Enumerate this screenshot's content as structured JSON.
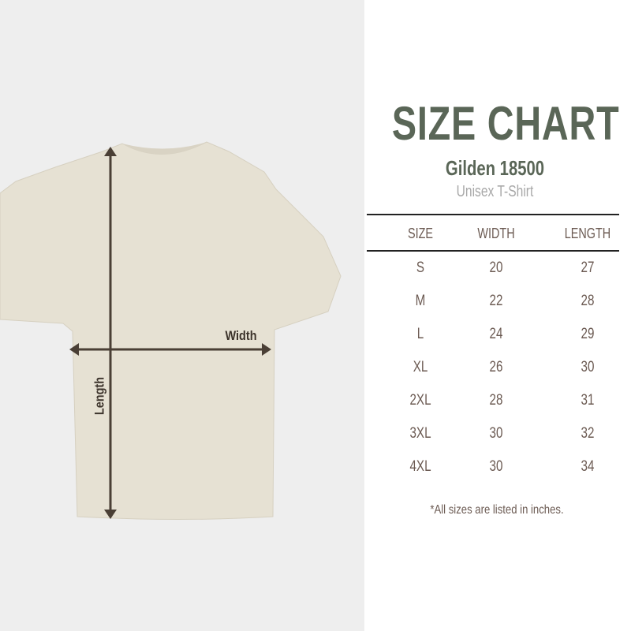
{
  "header": {
    "title": "SIZE CHART",
    "model": "Gilden 18500",
    "style": "Unisex T-Shirt"
  },
  "diagram": {
    "width_label": "Width",
    "length_label": "Length",
    "shirt_color": "#e6e1d3",
    "arrow_color": "#4a3f35"
  },
  "table": {
    "columns": [
      "SIZE",
      "WIDTH",
      "LENGTH"
    ],
    "rows": [
      [
        "S",
        "20",
        "27"
      ],
      [
        "M",
        "22",
        "28"
      ],
      [
        "L",
        "24",
        "29"
      ],
      [
        "XL",
        "26",
        "30"
      ],
      [
        "2XL",
        "28",
        "31"
      ],
      [
        "3XL",
        "30",
        "32"
      ],
      [
        "4XL",
        "30",
        "34"
      ]
    ]
  },
  "footnote": "*All sizes are listed in inches.",
  "colors": {
    "title": "#5a6657",
    "text": "#6b5a52",
    "background_left": "#eeeeee"
  }
}
